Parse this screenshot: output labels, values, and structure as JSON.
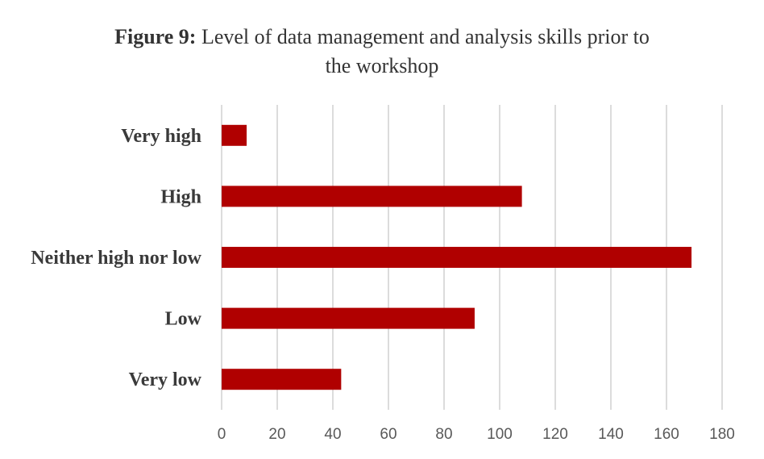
{
  "title": {
    "prefix": "Figure 9:",
    "line1": "Level of data management and analysis skills prior to",
    "line2": "the workshop"
  },
  "colors": {
    "bar": "#b00000",
    "grid": "#d0d0d0",
    "label_text": "#3a3a3a",
    "tick_text": "#595959"
  },
  "chart_data": {
    "type": "bar",
    "orientation": "horizontal",
    "title": "Figure 9: Level of data management and analysis skills prior to the workshop",
    "categories": [
      "Very high",
      "High",
      "Neither high nor low",
      "Low",
      "Very low"
    ],
    "values": [
      9,
      108,
      169,
      91,
      43
    ],
    "xlim": [
      0,
      180
    ],
    "xticks": [
      0,
      20,
      40,
      60,
      80,
      100,
      120,
      140,
      160,
      180
    ],
    "xlabel": "",
    "ylabel": "",
    "grid": "vertical",
    "legend": "none"
  }
}
